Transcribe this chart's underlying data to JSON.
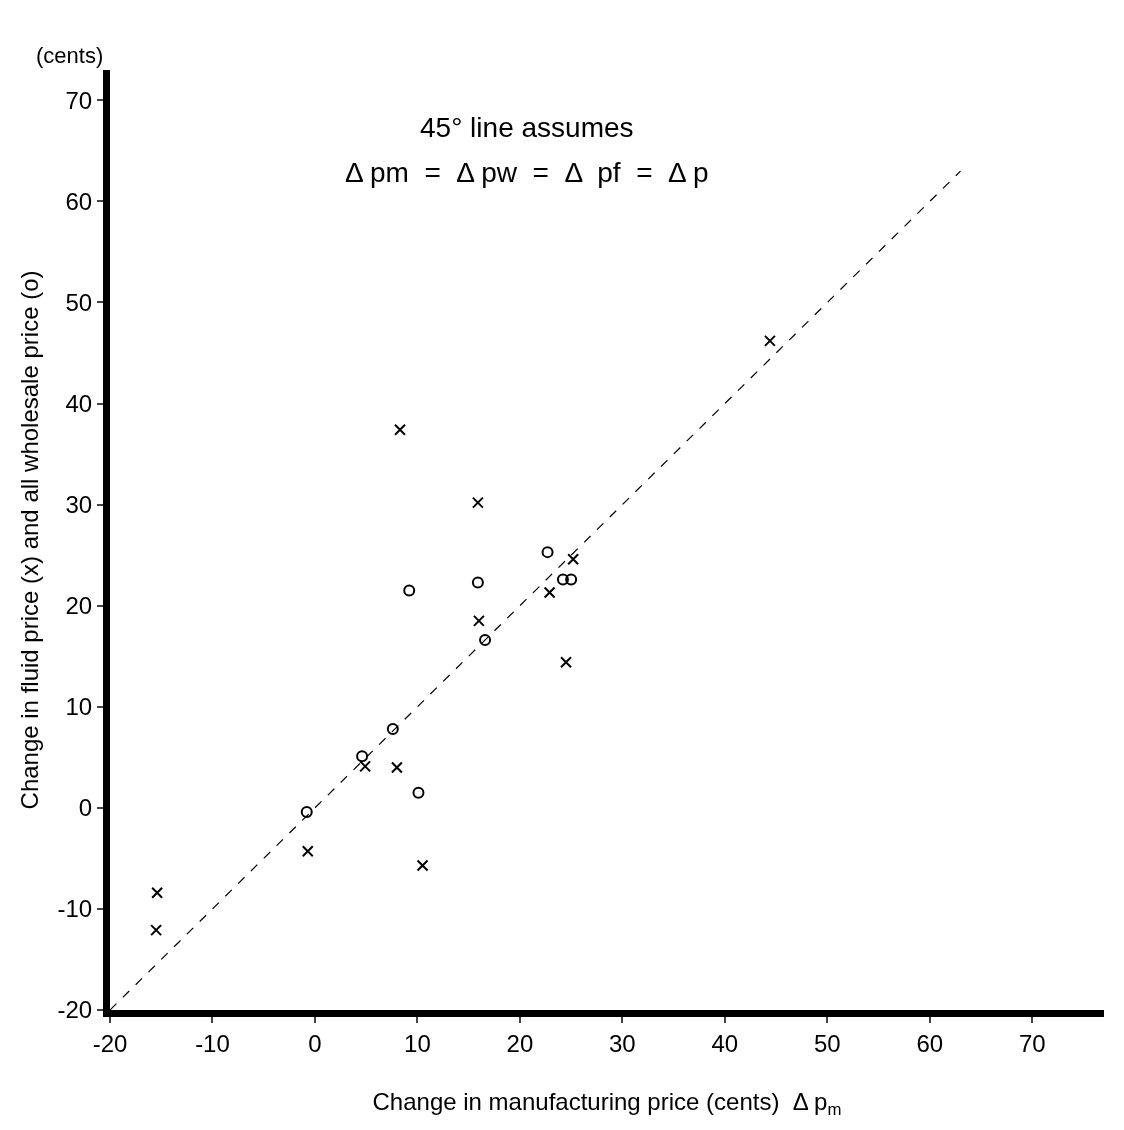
{
  "chart_data": {
    "type": "scatter",
    "xlabel": "Change in manufacturing price (cents)  Δ p$_{m}$",
    "ylabel": "Change in fluid price (x) and all wholesale price (o)",
    "annotations": [
      "(cents)",
      "45° line assumes",
      "Δ pm  =  Δ pw  =  Δ  pf  =  Δ p"
    ],
    "series": [
      {
        "marker": "circle",
        "color": "#000000",
        "x": [
          22.7,
          24.2,
          25.0,
          15.9,
          9.2,
          16.6,
          7.6,
          4.6,
          10.1,
          -0.8
        ],
        "values": [
          25.3,
          22.6,
          22.6,
          22.3,
          21.5,
          16.6,
          7.8,
          5.1,
          1.5,
          -0.4
        ]
      },
      {
        "marker": "cross",
        "color": "#000000",
        "x": [
          -15.4,
          -15.5,
          -0.7,
          4.9,
          8.0,
          15.9,
          16.0,
          22.9,
          25.2,
          24.5,
          8.3,
          10.5,
          44.4
        ],
        "values": [
          -8.4,
          -12.1,
          -4.3,
          4.1,
          4.0,
          30.2,
          18.5,
          21.3,
          24.6,
          14.4,
          37.4,
          -5.7,
          46.2
        ]
      },
      {
        "type": "line",
        "line_style": "dashed",
        "color": "#000000",
        "x": [
          -20,
          63
        ],
        "values": [
          -20,
          63
        ]
      }
    ],
    "xlim": [
      -20,
      77
    ],
    "ylim": [
      -20,
      73
    ],
    "xticks": [
      -20,
      -10,
      0,
      10,
      20,
      30,
      40,
      50,
      60,
      70
    ],
    "yticks": [
      -20,
      -10,
      0,
      10,
      20,
      30,
      40,
      50,
      60,
      70
    ]
  }
}
